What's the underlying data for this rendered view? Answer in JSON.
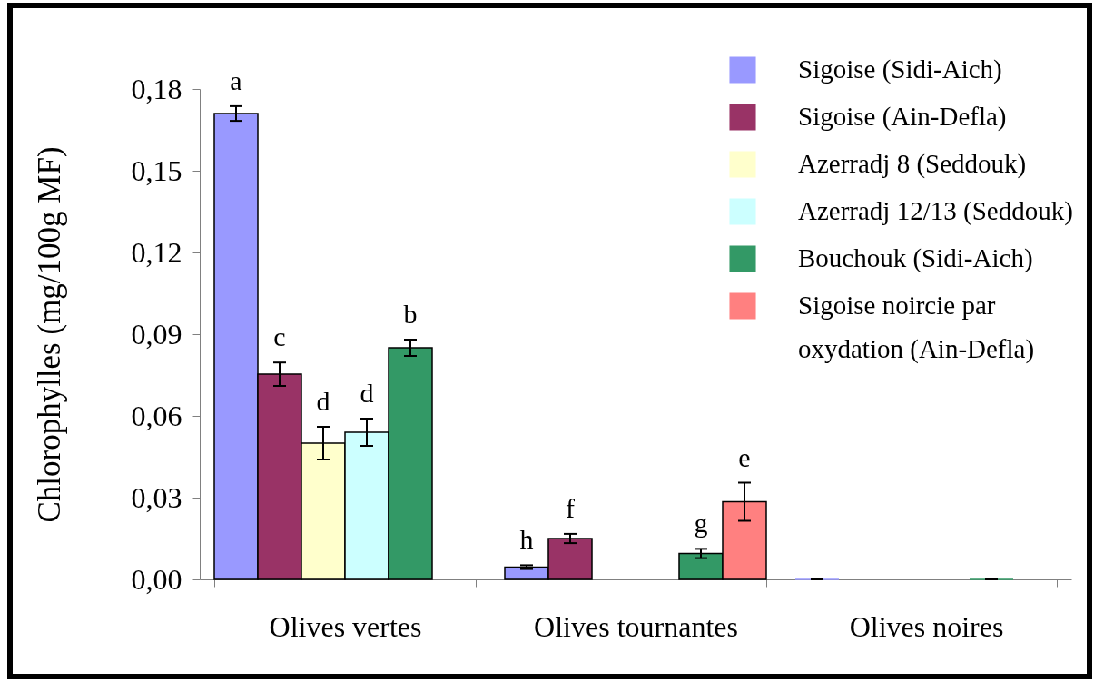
{
  "chart_data": {
    "type": "bar",
    "ylabel": "Chlorophylles (mg/100g  MF)",
    "categories": [
      "Olives vertes",
      "Olives tournantes",
      "Olives noires"
    ],
    "series": [
      {
        "name": "Sigoise (Sidi-Aich)",
        "color": "#9999ff",
        "values": [
          0.171,
          0.0045,
          0
        ],
        "errors": [
          0.0027,
          0.0007,
          0
        ],
        "value_labels": [
          "a",
          "h",
          null
        ]
      },
      {
        "name": "Sigoise (Ain-Defla)",
        "color": "#993366",
        "values": [
          0.0753,
          0.015,
          null
        ],
        "errors": [
          0.0043,
          0.0017,
          null
        ],
        "value_labels": [
          "c",
          "f",
          null
        ]
      },
      {
        "name": "Azerradj 8 (Seddouk)",
        "color": "#ffffcc",
        "values": [
          0.05,
          null,
          null
        ],
        "errors": [
          0.006,
          null,
          null
        ],
        "value_labels": [
          "d",
          null,
          null
        ]
      },
      {
        "name": "Azerradj 12/13 (Seddouk)",
        "color": "#ccffff",
        "values": [
          0.054,
          null,
          null
        ],
        "errors": [
          0.005,
          null,
          null
        ],
        "value_labels": [
          "d",
          null,
          null
        ]
      },
      {
        "name": "Bouchouk (Sidi-Aich)",
        "color": "#339966",
        "values": [
          0.085,
          0.0095,
          0
        ],
        "errors": [
          0.003,
          0.0017,
          0
        ],
        "value_labels": [
          "b",
          "g",
          null
        ]
      },
      {
        "name": "Sigoise noircie par oxydation (Ain-Defla)",
        "color": "#ff8080",
        "values": [
          null,
          0.0285,
          null
        ],
        "errors": [
          null,
          0.007,
          null
        ],
        "value_labels": [
          null,
          "e",
          null
        ]
      }
    ],
    "ylim": [
      0,
      0.18
    ],
    "yticks": [
      {
        "value": 0,
        "label": "0,00"
      },
      {
        "value": 0.03,
        "label": "0,03"
      },
      {
        "value": 0.06,
        "label": "0,06"
      },
      {
        "value": 0.09,
        "label": "0,09"
      },
      {
        "value": 0.12,
        "label": "0,12"
      },
      {
        "value": 0.15,
        "label": "0,15"
      },
      {
        "value": 0.18,
        "label": "0,18"
      }
    ],
    "legend": "top right"
  }
}
